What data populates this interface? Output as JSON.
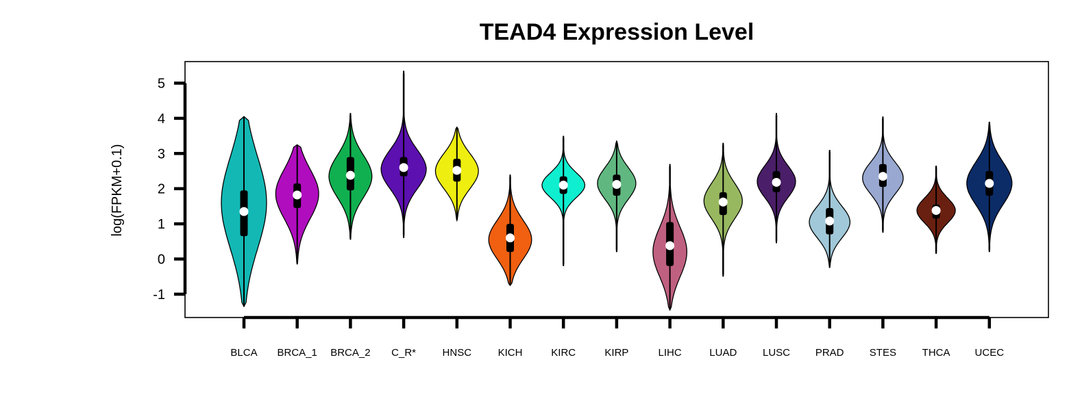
{
  "chart_data": {
    "type": "violin",
    "title": "TEAD4 Expression Level",
    "ylabel": "log(FPKM+0.1)",
    "xlabel": "",
    "ylim": [
      -1.7,
      5.6
    ],
    "yticks": [
      -1,
      0,
      1,
      2,
      3,
      4,
      5
    ],
    "grid": false,
    "legend": "none",
    "categories": [
      "BLCA",
      "BRCA_1",
      "BRCA_2",
      "C_R*",
      "HNSC",
      "KICH",
      "KIRC",
      "KIRP",
      "LIHC",
      "LUAD",
      "LUSC",
      "PRAD",
      "STES",
      "THCA",
      "UCEC"
    ],
    "colors": [
      "#13B8B4",
      "#B00DBE",
      "#10B050",
      "#5C10B0",
      "#EEEE10",
      "#F06010",
      "#10EED0",
      "#60B880",
      "#C06080",
      "#98B860",
      "#4A1E68",
      "#A0C8D8",
      "#98A8D0",
      "#6A2010",
      "#0C2C68"
    ],
    "violins": [
      {
        "min": -1.35,
        "max": 4.05,
        "q1": 0.65,
        "median": 1.35,
        "q3": 1.95,
        "mode": 1.6,
        "width": 1.0,
        "spread": 1.3
      },
      {
        "min": -0.15,
        "max": 3.25,
        "q1": 1.45,
        "median": 1.82,
        "q3": 2.15,
        "mode": 1.85,
        "width": 0.95,
        "spread": 0.7
      },
      {
        "min": 0.55,
        "max": 4.15,
        "q1": 1.95,
        "median": 2.38,
        "q3": 2.9,
        "mode": 2.35,
        "width": 0.95,
        "spread": 0.6
      },
      {
        "min": 0.6,
        "max": 5.35,
        "q1": 2.35,
        "median": 2.6,
        "q3": 2.9,
        "mode": 2.55,
        "width": 1.0,
        "spread": 0.55
      },
      {
        "min": 1.1,
        "max": 3.75,
        "q1": 2.2,
        "median": 2.52,
        "q3": 2.85,
        "mode": 2.5,
        "width": 0.95,
        "spread": 0.5
      },
      {
        "min": -0.75,
        "max": 2.4,
        "q1": 0.2,
        "median": 0.6,
        "q3": 1.0,
        "mode": 0.55,
        "width": 0.95,
        "spread": 0.55
      },
      {
        "min": -0.2,
        "max": 3.5,
        "q1": 1.85,
        "median": 2.1,
        "q3": 2.35,
        "mode": 2.1,
        "width": 0.95,
        "spread": 0.35
      },
      {
        "min": 0.2,
        "max": 3.35,
        "q1": 1.8,
        "median": 2.12,
        "q3": 2.4,
        "mode": 2.15,
        "width": 0.85,
        "spread": 0.45
      },
      {
        "min": -1.45,
        "max": 2.7,
        "q1": -0.2,
        "median": 0.38,
        "q3": 1.05,
        "mode": 0.2,
        "width": 0.75,
        "spread": 0.7
      },
      {
        "min": -0.5,
        "max": 3.3,
        "q1": 1.25,
        "median": 1.62,
        "q3": 1.9,
        "mode": 1.65,
        "width": 0.85,
        "spread": 0.5
      },
      {
        "min": 0.45,
        "max": 4.15,
        "q1": 1.9,
        "median": 2.18,
        "q3": 2.5,
        "mode": 2.2,
        "width": 0.85,
        "spread": 0.45
      },
      {
        "min": -0.25,
        "max": 3.1,
        "q1": 0.7,
        "median": 1.08,
        "q3": 1.45,
        "mode": 1.05,
        "width": 0.9,
        "spread": 0.45
      },
      {
        "min": 0.75,
        "max": 4.05,
        "q1": 2.05,
        "median": 2.35,
        "q3": 2.7,
        "mode": 2.3,
        "width": 0.9,
        "spread": 0.45
      },
      {
        "min": 0.15,
        "max": 2.65,
        "q1": 1.15,
        "median": 1.38,
        "q3": 1.55,
        "mode": 1.38,
        "width": 0.85,
        "spread": 0.35
      },
      {
        "min": 0.2,
        "max": 3.9,
        "q1": 1.8,
        "median": 2.15,
        "q3": 2.5,
        "mode": 2.15,
        "width": 1.0,
        "spread": 0.6
      }
    ]
  }
}
